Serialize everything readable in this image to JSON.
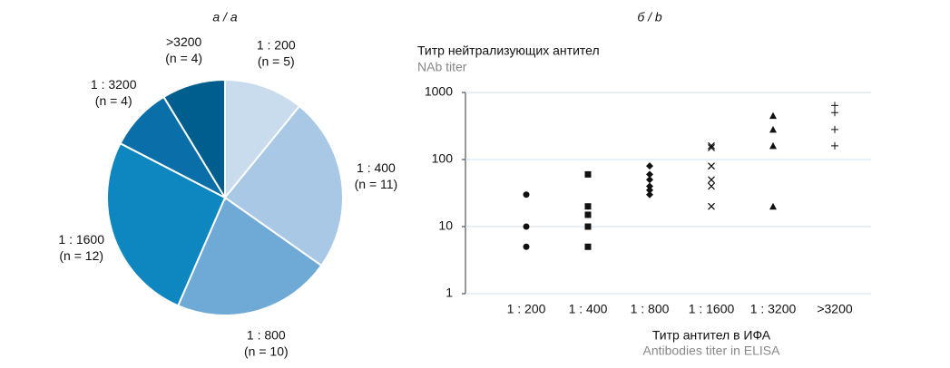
{
  "chart_data": [
    {
      "type": "pie",
      "title": "а / a",
      "categories": [
        "1 : 200",
        "1 : 400",
        "1 : 800",
        "1 : 1600",
        "1 : 3200",
        ">3200"
      ],
      "values": [
        5,
        11,
        10,
        12,
        4,
        4
      ],
      "value_labels": [
        "(n = 5)",
        "(n = 11)",
        "(n = 10)",
        "(n = 12)",
        "(n = 4)",
        "(n = 4)"
      ],
      "colors": [
        "#c9dcee",
        "#a9c8e6",
        "#6fa9d6",
        "#0e86c0",
        "#0a6fa8",
        "#005e8e"
      ]
    },
    {
      "type": "scatter",
      "title": "б / b",
      "y_label": "Титр нейтрализующих антител",
      "y_label_en": "NAb titer",
      "x_label": "Титр антител в ИФА",
      "x_label_en": "Antibodies titer in ELISA",
      "categories": [
        "1 : 200",
        "1 : 400",
        "1 : 800",
        "1 : 1600",
        "1 : 3200",
        ">3200"
      ],
      "log_y": true,
      "ylim": [
        1,
        1000
      ],
      "yticks": [
        1,
        10,
        100,
        1000
      ],
      "grid": true,
      "color": "#111111",
      "series": [
        {
          "marker": "circle",
          "values": [
            30,
            10,
            5
          ]
        },
        {
          "marker": "square",
          "values": [
            60,
            20,
            15,
            10,
            5
          ]
        },
        {
          "marker": "diamond",
          "values": [
            80,
            60,
            50,
            40,
            35,
            30
          ]
        },
        {
          "marker": "cross",
          "values": [
            160,
            150,
            80,
            50,
            40,
            20
          ]
        },
        {
          "marker": "triangle",
          "values": [
            450,
            280,
            160,
            20
          ]
        },
        {
          "marker": "plus",
          "values": [
            640,
            500,
            280,
            160
          ]
        }
      ]
    }
  ]
}
